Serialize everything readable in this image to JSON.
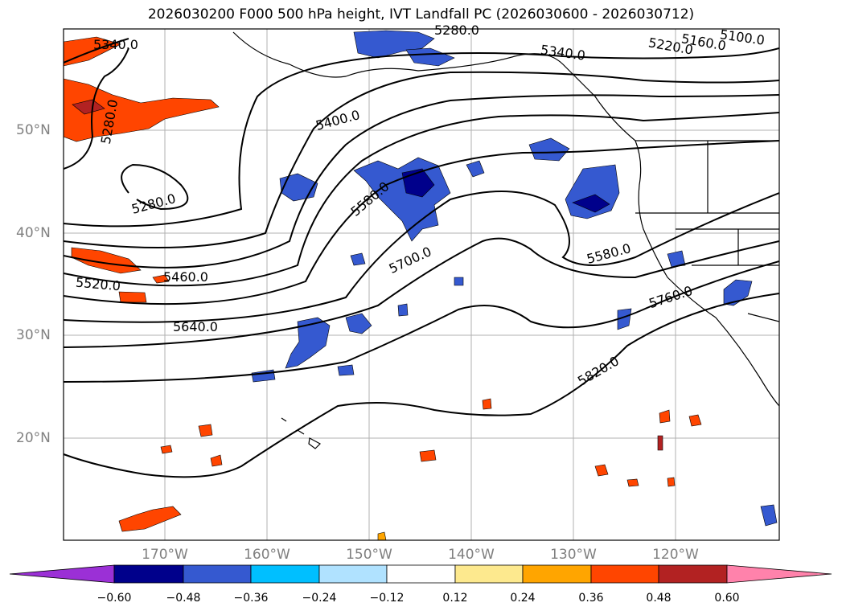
{
  "title": "2026030200 F000 500 hPa height, IVT Landfall PC (2026030600 - 2026030712)",
  "map": {
    "lat_labels": [
      "50°N",
      "40°N",
      "30°N",
      "20°N"
    ],
    "lon_labels": [
      "170°W",
      "160°W",
      "150°W",
      "140°W",
      "130°W",
      "120°W"
    ],
    "contour_labels": [
      "5340.0",
      "5280.0",
      "5280.0",
      "5280.0",
      "5340.0",
      "5220.0",
      "5160.0",
      "5100.0",
      "5400.0",
      "5580.0",
      "5700.0",
      "5580.0",
      "5460.0",
      "5520.0",
      "5640.0",
      "5760.0",
      "5820.0"
    ]
  },
  "colorbar": {
    "ticks": [
      "−0.60",
      "−0.48",
      "−0.36",
      "−0.24",
      "−0.12",
      "0.12",
      "0.24",
      "0.36",
      "0.48",
      "0.60"
    ],
    "colors": [
      "#9b30d6",
      "#00008b",
      "#3559d0",
      "#00bfff",
      "#b0e2ff",
      "#ffffff",
      "#fde98e",
      "#ffa500",
      "#ff4500",
      "#b22222",
      "#ff82ab"
    ]
  }
}
